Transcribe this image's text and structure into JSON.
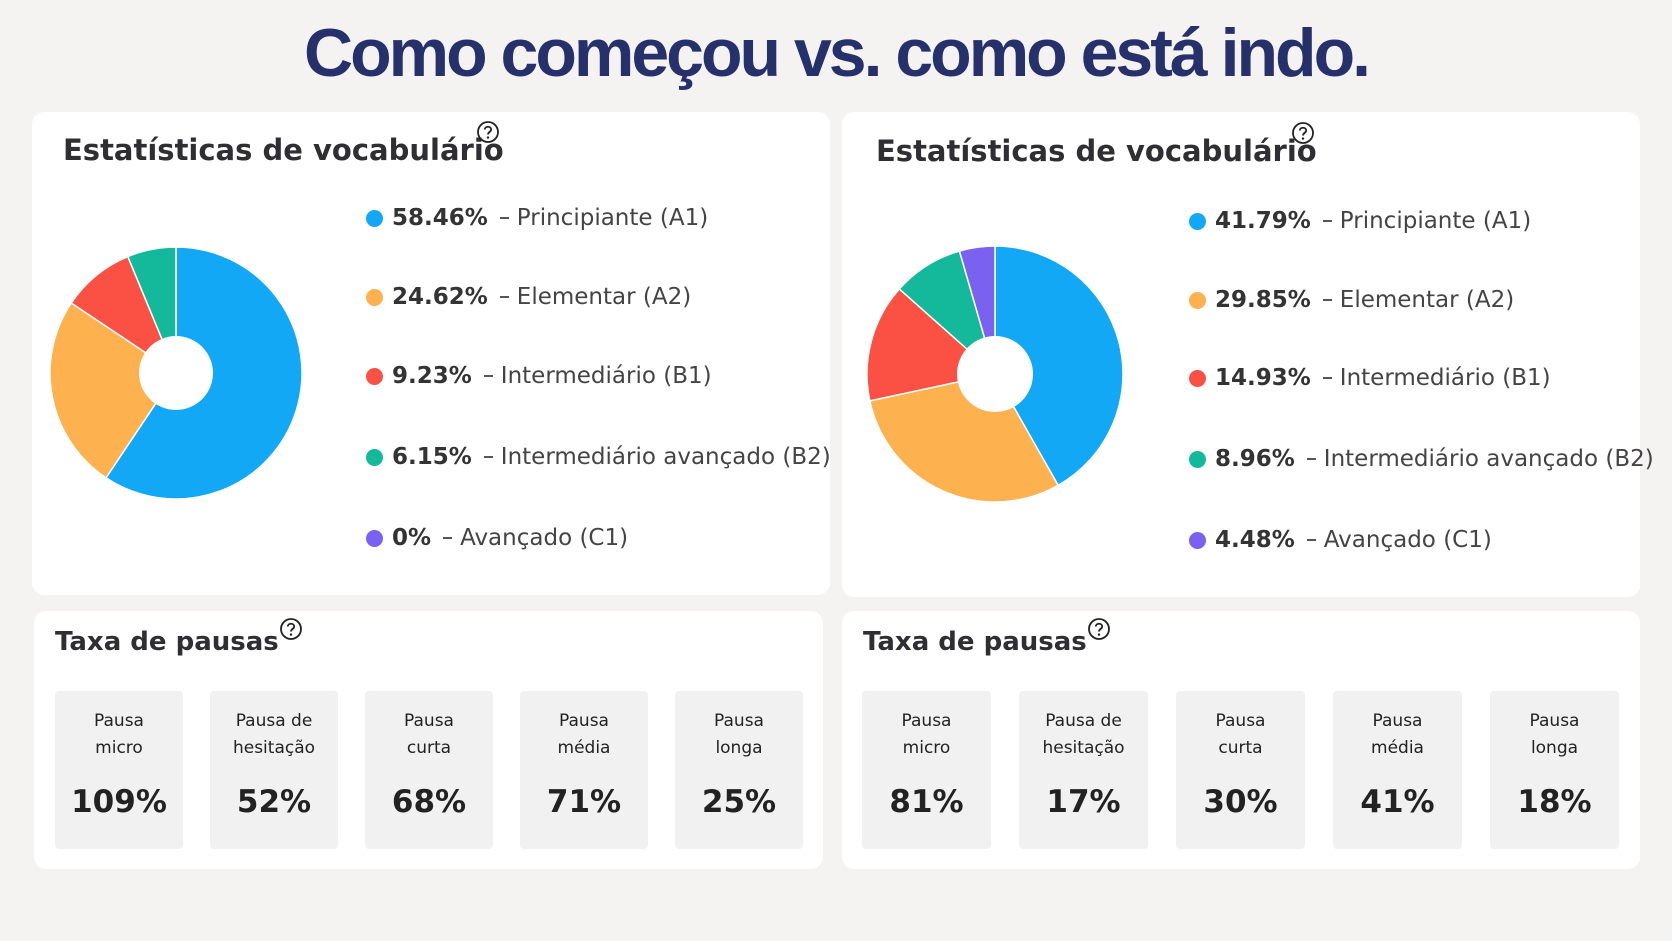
{
  "title": "Como começou vs. como está indo.",
  "chart_data": [
    {
      "type": "pie",
      "title": "Estatísticas de vocabulário",
      "categories": [
        "Principiante (A1)",
        "Elementar (A2)",
        "Intermediário (B1)",
        "Intermediário avançado (B2)",
        "Avançado (C1)"
      ],
      "values": [
        58.46,
        24.62,
        9.23,
        6.15,
        0
      ],
      "value_labels": [
        "58.46%",
        "24.62%",
        "9.23%",
        "6.15%",
        "0%"
      ],
      "colors": [
        "#12a8f5",
        "#fdb14f",
        "#fb5145",
        "#14b89a",
        "#7b61f0"
      ]
    },
    {
      "type": "pie",
      "title": "Estatísticas de vocabulário",
      "categories": [
        "Principiante (A1)",
        "Elementar (A2)",
        "Intermediário (B1)",
        "Intermediário avançado (B2)",
        "Avançado (C1)"
      ],
      "values": [
        41.79,
        29.85,
        14.93,
        8.96,
        4.48
      ],
      "value_labels": [
        "41.79%",
        "29.85%",
        "14.93%",
        "8.96%",
        "4.48%"
      ],
      "colors": [
        "#12a8f5",
        "#fdb14f",
        "#fb5145",
        "#14b89a",
        "#7b61f0"
      ]
    }
  ],
  "pauses": [
    {
      "title": "Taxa de pausas",
      "items": [
        {
          "label": "Pausa micro",
          "value": "109%"
        },
        {
          "label": "Pausa de hesitação",
          "value": "52%"
        },
        {
          "label": "Pausa curta",
          "value": "68%"
        },
        {
          "label": "Pausa média",
          "value": "71%"
        },
        {
          "label": "Pausa longa",
          "value": "25%"
        }
      ]
    },
    {
      "title": "Taxa de pausas",
      "items": [
        {
          "label": "Pausa micro",
          "value": "81%"
        },
        {
          "label": "Pausa de hesitação",
          "value": "17%"
        },
        {
          "label": "Pausa curta",
          "value": "30%"
        },
        {
          "label": "Pausa média",
          "value": "41%"
        },
        {
          "label": "Pausa longa",
          "value": "18%"
        }
      ]
    }
  ]
}
